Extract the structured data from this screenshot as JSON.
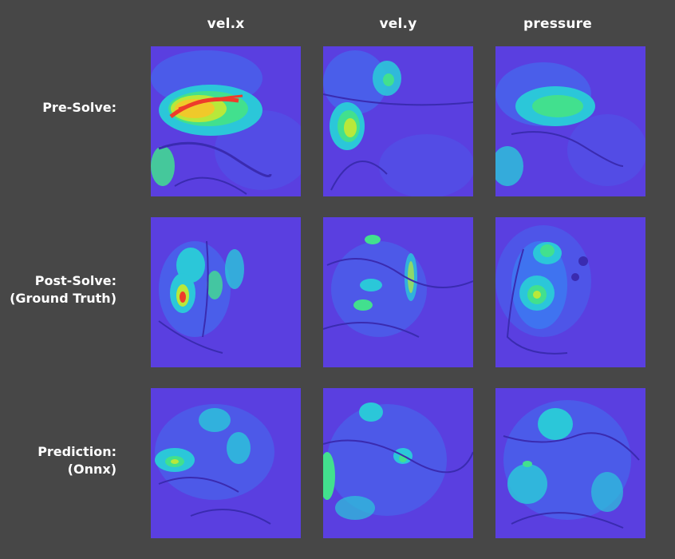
{
  "columns": [
    "vel.x",
    "vel.y",
    "pressure"
  ],
  "rows": [
    {
      "label_lines": [
        "Pre-Solve:"
      ]
    },
    {
      "label_lines": [
        "Post-Solve:",
        "(Ground Truth)"
      ]
    },
    {
      "label_lines": [
        "Prediction:",
        "(Onnx)"
      ]
    }
  ],
  "colormap": [
    "#4b2ee0",
    "#3f73f0",
    "#2bc7d9",
    "#42e08e",
    "#b8e83a",
    "#f0c92a",
    "#ee3b2b"
  ]
}
